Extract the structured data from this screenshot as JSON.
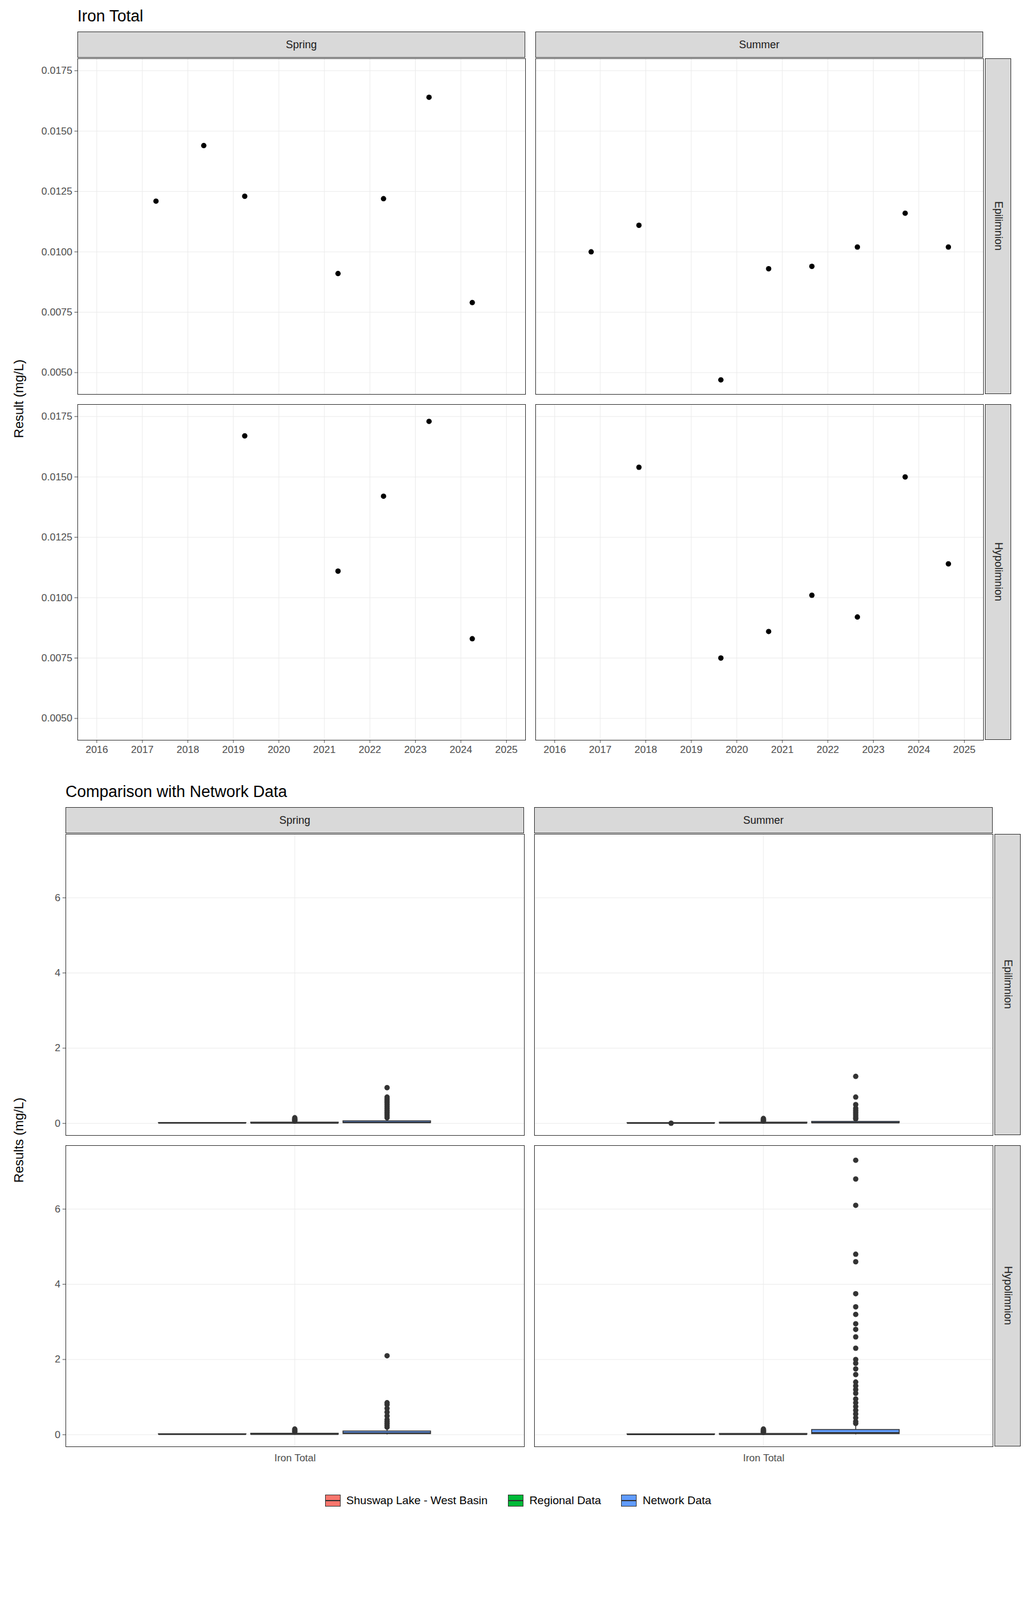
{
  "chart_data": [
    {
      "type": "scatter",
      "title": "Iron Total",
      "y_label": "Result (mg/L)",
      "facets": {
        "columns": [
          "Spring",
          "Summer"
        ],
        "rows": [
          "Epilimnion",
          "Hypolimnion"
        ]
      },
      "color": "#000000",
      "marker": "circle",
      "grid": true,
      "xlim": [
        2015.58,
        2025.42
      ],
      "xticks": [
        2016,
        2017,
        2018,
        2019,
        2020,
        2021,
        2022,
        2023,
        2024,
        2025
      ],
      "ylim": [
        0.0041,
        0.018
      ],
      "yticks": [
        {
          "value": 0.005,
          "label": "0.0050"
        },
        {
          "value": 0.0075,
          "label": "0.0075"
        },
        {
          "value": 0.01,
          "label": "0.0100"
        },
        {
          "value": 0.0125,
          "label": "0.0125"
        },
        {
          "value": 0.015,
          "label": "0.0150"
        },
        {
          "value": 0.0175,
          "label": "0.0175"
        }
      ],
      "panels": [
        {
          "column": "Spring",
          "row": "Epilimnion",
          "x": [
            2017.3,
            2018.35,
            2019.25,
            2021.3,
            2022.3,
            2023.3,
            2024.25
          ],
          "values": [
            0.0121,
            0.0144,
            0.0123,
            0.0091,
            0.0122,
            0.0164,
            0.0079
          ]
        },
        {
          "column": "Summer",
          "row": "Epilimnion",
          "x": [
            2016.8,
            2017.85,
            2019.65,
            2020.7,
            2021.65,
            2022.65,
            2023.7,
            2024.65
          ],
          "values": [
            0.01,
            0.0111,
            0.0047,
            0.0093,
            0.0094,
            0.0102,
            0.0116,
            0.0102
          ]
        },
        {
          "column": "Spring",
          "row": "Hypolimnion",
          "x": [
            2019.25,
            2021.3,
            2022.3,
            2023.3,
            2024.25
          ],
          "values": [
            0.0167,
            0.0111,
            0.0142,
            0.0173,
            0.0083
          ]
        },
        {
          "column": "Summer",
          "row": "Hypolimnion",
          "x": [
            2017.85,
            2019.65,
            2020.7,
            2021.65,
            2022.65,
            2023.7,
            2024.65
          ],
          "values": [
            0.0154,
            0.0075,
            0.0086,
            0.0101,
            0.0092,
            0.015,
            0.0114
          ]
        }
      ]
    },
    {
      "type": "box",
      "title": "Comparison with Network Data",
      "y_label": "Results (mg/L)",
      "categories": [
        "Iron Total"
      ],
      "facets": {
        "columns": [
          "Spring",
          "Summer"
        ],
        "rows": [
          "Epilimnion",
          "Hypolimnion"
        ]
      },
      "grid": true,
      "legend": "bottom",
      "ylim": [
        -0.32,
        7.69
      ],
      "yticks": [
        0,
        2,
        4,
        6
      ],
      "series": [
        {
          "name": "Shuswap Lake - West Basin",
          "color": "#F8766D",
          "panels": [
            {
              "column": "Spring",
              "row": "Epilimnion",
              "min": 0.0079,
              "q1": 0.0106,
              "median": 0.0122,
              "q3": 0.01335,
              "max": 0.0164,
              "outliers": []
            },
            {
              "column": "Summer",
              "row": "Epilimnion",
              "min": 0.0093,
              "q1": 0.00938,
              "median": 0.0101,
              "q3": 0.0104,
              "max": 0.0116,
              "outliers": [
                0.0047
              ]
            },
            {
              "column": "Spring",
              "row": "Hypolimnion",
              "min": 0.0083,
              "q1": 0.0111,
              "median": 0.0142,
              "q3": 0.0167,
              "max": 0.0173,
              "outliers": []
            },
            {
              "column": "Summer",
              "row": "Hypolimnion",
              "min": 0.0075,
              "q1": 0.0089,
              "median": 0.0101,
              "q3": 0.0132,
              "max": 0.0154,
              "outliers": []
            }
          ]
        },
        {
          "name": "Regional Data",
          "color": "#00BA38",
          "panels": [
            {
              "column": "Spring",
              "row": "Epilimnion",
              "min": 0,
              "q1": 0.005,
              "median": 0.012,
              "q3": 0.025,
              "max": 0.05,
              "outliers": [
                0.06,
                0.08,
                0.1,
                0.12,
                0.15
              ]
            },
            {
              "column": "Summer",
              "row": "Epilimnion",
              "min": 0,
              "q1": 0.005,
              "median": 0.012,
              "q3": 0.025,
              "max": 0.05,
              "outliers": [
                0.06,
                0.08,
                0.1,
                0.13
              ]
            },
            {
              "column": "Spring",
              "row": "Hypolimnion",
              "min": 0,
              "q1": 0.005,
              "median": 0.015,
              "q3": 0.03,
              "max": 0.065,
              "outliers": [
                0.07,
                0.09,
                0.12,
                0.15
              ]
            },
            {
              "column": "Summer",
              "row": "Hypolimnion",
              "min": 0,
              "q1": 0.005,
              "median": 0.012,
              "q3": 0.025,
              "max": 0.05,
              "outliers": [
                0.06,
                0.08,
                0.1,
                0.12,
                0.15
              ]
            }
          ]
        },
        {
          "name": "Network Data",
          "color": "#619CFF",
          "panels": [
            {
              "column": "Spring",
              "row": "Epilimnion",
              "min": 0.001,
              "q1": 0.012,
              "median": 0.025,
              "q3": 0.06,
              "max": 0.13,
              "outliers": [
                0.15,
                0.2,
                0.25,
                0.3,
                0.35,
                0.4,
                0.45,
                0.5,
                0.55,
                0.6,
                0.65,
                0.7,
                0.95
              ]
            },
            {
              "column": "Summer",
              "row": "Epilimnion",
              "min": 0.001,
              "q1": 0.01,
              "median": 0.02,
              "q3": 0.045,
              "max": 0.1,
              "outliers": [
                0.12,
                0.15,
                0.2,
                0.25,
                0.3,
                0.35,
                0.4,
                0.5,
                0.7,
                1.25
              ]
            },
            {
              "column": "Spring",
              "row": "Hypolimnion",
              "min": 0.001,
              "q1": 0.02,
              "median": 0.04,
              "q3": 0.09,
              "max": 0.18,
              "outliers": [
                0.2,
                0.25,
                0.3,
                0.35,
                0.4,
                0.5,
                0.6,
                0.7,
                0.8,
                0.85,
                2.1
              ]
            },
            {
              "column": "Summer",
              "row": "Hypolimnion",
              "min": 0.001,
              "q1": 0.02,
              "median": 0.05,
              "q3": 0.13,
              "max": 0.29,
              "outliers": [
                0.3,
                0.35,
                0.45,
                0.55,
                0.65,
                0.75,
                0.85,
                0.95,
                1.1,
                1.2,
                1.3,
                1.4,
                1.6,
                1.75,
                1.9,
                2.0,
                2.3,
                2.6,
                2.8,
                2.95,
                3.2,
                3.4,
                3.75,
                4.6,
                4.8,
                6.1,
                6.8,
                7.3
              ]
            }
          ]
        }
      ]
    }
  ]
}
